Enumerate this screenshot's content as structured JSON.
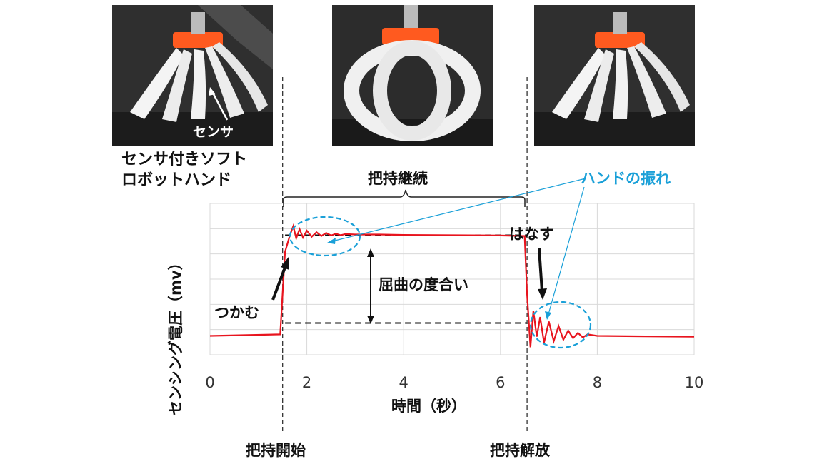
{
  "photos": {
    "left_caption_line1": "センサ付きソフト",
    "left_caption_line2": "ロボットハンド",
    "sensor_label": "センサ"
  },
  "annotations": {
    "hold_continue": "把持継続",
    "hand_shake": "ハンドの振れ",
    "grab": "つかむ",
    "release": "はなす",
    "bend_degree": "屈曲の度合い",
    "grip_start": "把持開始",
    "grip_release": "把持解放"
  },
  "colors": {
    "signal": "#e8141e",
    "annotation": "#1aa0d8",
    "grid": "#d9d9d9"
  },
  "chart_data": {
    "type": "line",
    "title": "",
    "xlabel": "時間（秒）",
    "ylabel": "センシング電圧（mv）",
    "xlim": [
      0,
      10
    ],
    "x_ticks": [
      0,
      2,
      4,
      6,
      8,
      10
    ],
    "ylim": [
      0,
      10
    ],
    "grid": true,
    "series": [
      {
        "x": [
          0,
          1.45,
          1.55,
          1.65,
          1.72,
          1.78,
          1.85,
          1.92,
          2.0,
          2.1,
          2.2,
          2.3,
          2.4,
          2.5,
          2.6,
          2.7,
          2.8,
          3.0,
          3.5,
          4.0,
          5.0,
          6.0,
          6.5,
          6.55,
          6.62,
          6.68,
          6.75,
          6.82,
          6.9,
          7.0,
          7.1,
          7.2,
          7.3,
          7.4,
          7.5,
          7.6,
          7.7,
          7.8,
          8.0,
          9.0,
          10.0
        ],
        "y": [
          1.25,
          1.35,
          6.8,
          7.9,
          8.5,
          7.7,
          8.3,
          7.75,
          8.2,
          7.8,
          8.1,
          7.85,
          8.05,
          7.88,
          8.0,
          7.9,
          7.98,
          7.95,
          7.95,
          7.92,
          7.9,
          7.88,
          7.85,
          4.0,
          0.5,
          2.9,
          1.2,
          2.5,
          0.8,
          2.2,
          0.9,
          1.9,
          1.0,
          1.6,
          1.1,
          1.45,
          1.15,
          1.35,
          1.25,
          1.22,
          1.2
        ]
      }
    ],
    "reference_lines": [
      {
        "type": "dashed-horizontal",
        "y": 7.9,
        "x_from": 1.55,
        "x_to": 6.55
      },
      {
        "type": "dashed-horizontal",
        "y": 2.1,
        "x_from": 1.55,
        "x_to": 6.55
      },
      {
        "type": "dashed-vertical",
        "x": 1.5
      },
      {
        "type": "dashed-vertical",
        "x": 6.55
      }
    ]
  }
}
